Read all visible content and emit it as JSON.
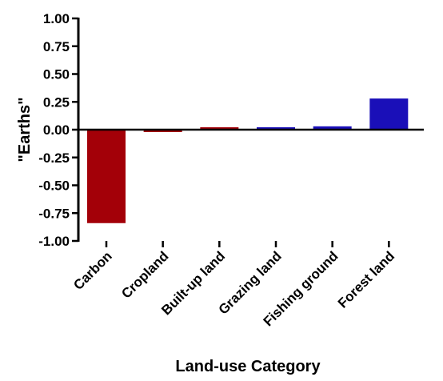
{
  "chart_data": {
    "type": "bar",
    "xlabel": "Land-use Category",
    "ylabel": "\"Earths\"",
    "ylim": [
      -1.0,
      1.0
    ],
    "yticks": [
      "1.00",
      "0.75",
      "0.50",
      "0.25",
      "0.00",
      "-0.25",
      "-0.50",
      "-0.75",
      "-1.00"
    ],
    "grid": false,
    "categories": [
      "Carbon",
      "Cropland",
      "Built-up land",
      "Grazing land",
      "Fishing ground",
      "Forest land"
    ],
    "values": [
      -0.84,
      -0.02,
      0.0,
      0.01,
      0.03,
      0.28
    ],
    "colors": [
      "#a30008",
      "#a30008",
      "#a30008",
      "#1a0fb8",
      "#1a0fb8",
      "#1a0fb8"
    ]
  }
}
